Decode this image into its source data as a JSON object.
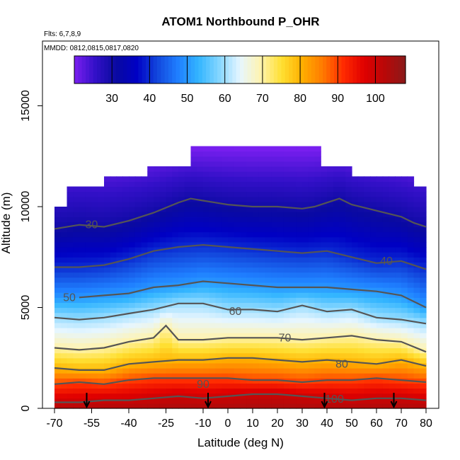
{
  "chart_data": {
    "type": "heatmap",
    "title": "ATOM1 Northbound P_OHR",
    "notes": [
      "Flts: 6,7,8,9",
      "MMDD: 0812,0815,0817,0820"
    ],
    "xlabel": "Latitude (deg N)",
    "ylabel": "Altitude (m)",
    "xlim": [
      -70,
      80
    ],
    "ylim": [
      0,
      18000
    ],
    "x_ticks": [
      -70,
      -55,
      -40,
      -25,
      -10,
      0,
      10,
      20,
      30,
      40,
      50,
      60,
      70,
      80
    ],
    "y_ticks": [
      0,
      5000,
      10000,
      15000
    ],
    "colorbar": {
      "range": [
        20,
        108
      ],
      "ticks": [
        30,
        40,
        50,
        60,
        70,
        80,
        90,
        100
      ],
      "colors": [
        "#7a1ff0",
        "#3310c8",
        "#0a0aa0",
        "#0000c4",
        "#1246dc",
        "#1f7fff",
        "#33b5ff",
        "#85d6ff",
        "#e6f6ff",
        "#fff3b0",
        "#ffe033",
        "#ffb000",
        "#ff7a00",
        "#ff2a00",
        "#e00000",
        "#b80808",
        "#8a1a1a"
      ]
    },
    "data_extent": {
      "lat_min": -70,
      "lat_max": 80,
      "top_altitude": [
        {
          "lat_from": -70,
          "lat_to": -65,
          "alt": 10000
        },
        {
          "lat_from": -65,
          "lat_to": -50,
          "alt": 11000
        },
        {
          "lat_from": -50,
          "lat_to": -32,
          "alt": 11500
        },
        {
          "lat_from": -32,
          "lat_to": -14,
          "alt": 12000
        },
        {
          "lat_from": -14,
          "lat_to": 37,
          "alt": 12900
        },
        {
          "lat_from": 37,
          "lat_to": 50,
          "alt": 12000
        },
        {
          "lat_from": 50,
          "lat_to": 75,
          "alt": 11500
        },
        {
          "lat_from": 75,
          "lat_to": 80,
          "alt": 11000
        }
      ]
    },
    "contours": [
      {
        "level": 30,
        "label": "30",
        "label_lat": -55,
        "label_alt": 9100,
        "lat": [
          -70,
          -60,
          -50,
          -40,
          -30,
          -20,
          -15,
          -10,
          -5,
          0,
          10,
          20,
          30,
          35,
          40,
          45,
          50,
          60,
          70,
          75,
          80
        ],
        "alt": [
          8900,
          9100,
          9000,
          9300,
          9700,
          10200,
          10400,
          10300,
          10200,
          10100,
          10000,
          10000,
          9900,
          10000,
          10200,
          10400,
          10100,
          9800,
          9500,
          9200,
          9000
        ]
      },
      {
        "level": 40,
        "label": "40",
        "label_lat": 64,
        "label_alt": 7300,
        "lat": [
          -70,
          -60,
          -50,
          -40,
          -30,
          -20,
          -10,
          0,
          10,
          20,
          30,
          40,
          50,
          60,
          70,
          80
        ],
        "alt": [
          7000,
          7000,
          7100,
          7400,
          7800,
          8000,
          8100,
          8000,
          7900,
          7800,
          7700,
          7800,
          7500,
          7200,
          7300,
          6900
        ]
      },
      {
        "level": 50,
        "label": "50",
        "label_lat": -64,
        "label_alt": 5500,
        "lat": [
          -60,
          -50,
          -40,
          -30,
          -20,
          -10,
          0,
          10,
          20,
          30,
          40,
          50,
          60,
          70,
          80
        ],
        "alt": [
          5500,
          5600,
          5700,
          6000,
          6100,
          6300,
          6200,
          6100,
          6000,
          6000,
          6000,
          5900,
          5800,
          5600,
          5000
        ]
      },
      {
        "level": 60,
        "label": "60",
        "label_lat": 3,
        "label_alt": 4800,
        "lat": [
          -70,
          -60,
          -50,
          -40,
          -30,
          -20,
          -10,
          0,
          10,
          20,
          30,
          40,
          50,
          60,
          70,
          80
        ],
        "alt": [
          4500,
          4400,
          4500,
          4700,
          4900,
          5200,
          5200,
          4900,
          4900,
          4800,
          5100,
          4800,
          4900,
          4500,
          4400,
          4200
        ]
      },
      {
        "level": 70,
        "label": "70",
        "label_lat": 23,
        "label_alt": 3500,
        "lat": [
          -70,
          -60,
          -50,
          -40,
          -30,
          -25,
          -20,
          -10,
          0,
          10,
          20,
          30,
          40,
          50,
          60,
          70,
          80
        ],
        "alt": [
          3000,
          2900,
          3000,
          3300,
          3500,
          4100,
          3400,
          3400,
          3500,
          3500,
          3500,
          3400,
          3500,
          3600,
          3400,
          3300,
          2800
        ]
      },
      {
        "level": 80,
        "label": "80",
        "label_lat": 46,
        "label_alt": 2200,
        "lat": [
          -70,
          -60,
          -50,
          -40,
          -30,
          -20,
          -10,
          0,
          10,
          20,
          30,
          40,
          50,
          60,
          70,
          80
        ],
        "alt": [
          2000,
          1900,
          1900,
          2200,
          2300,
          2400,
          2400,
          2500,
          2500,
          2400,
          2300,
          2400,
          2300,
          2200,
          2400,
          2100
        ]
      },
      {
        "level": 90,
        "label": "90",
        "label_lat": -10,
        "label_alt": 1200,
        "lat": [
          -70,
          -60,
          -50,
          -40,
          -30,
          -20,
          -10,
          0,
          10,
          20,
          30,
          40,
          50,
          60,
          70,
          80
        ],
        "alt": [
          1200,
          1300,
          1200,
          1400,
          1500,
          1500,
          1500,
          1500,
          1400,
          1400,
          1300,
          1400,
          1400,
          1500,
          1400,
          1300
        ]
      },
      {
        "level": 100,
        "label": "100",
        "label_lat": 43,
        "label_alt": 450,
        "lat": [
          -70,
          -60,
          -50,
          -40,
          -30,
          -20,
          -10,
          0,
          10,
          20,
          30,
          40,
          50,
          60,
          70,
          80
        ],
        "alt": [
          300,
          300,
          400,
          400,
          500,
          600,
          500,
          600,
          700,
          700,
          600,
          500,
          400,
          500,
          500,
          400
        ]
      }
    ],
    "profile_markers_lat": [
      -57,
      -8,
      39,
      67
    ]
  }
}
